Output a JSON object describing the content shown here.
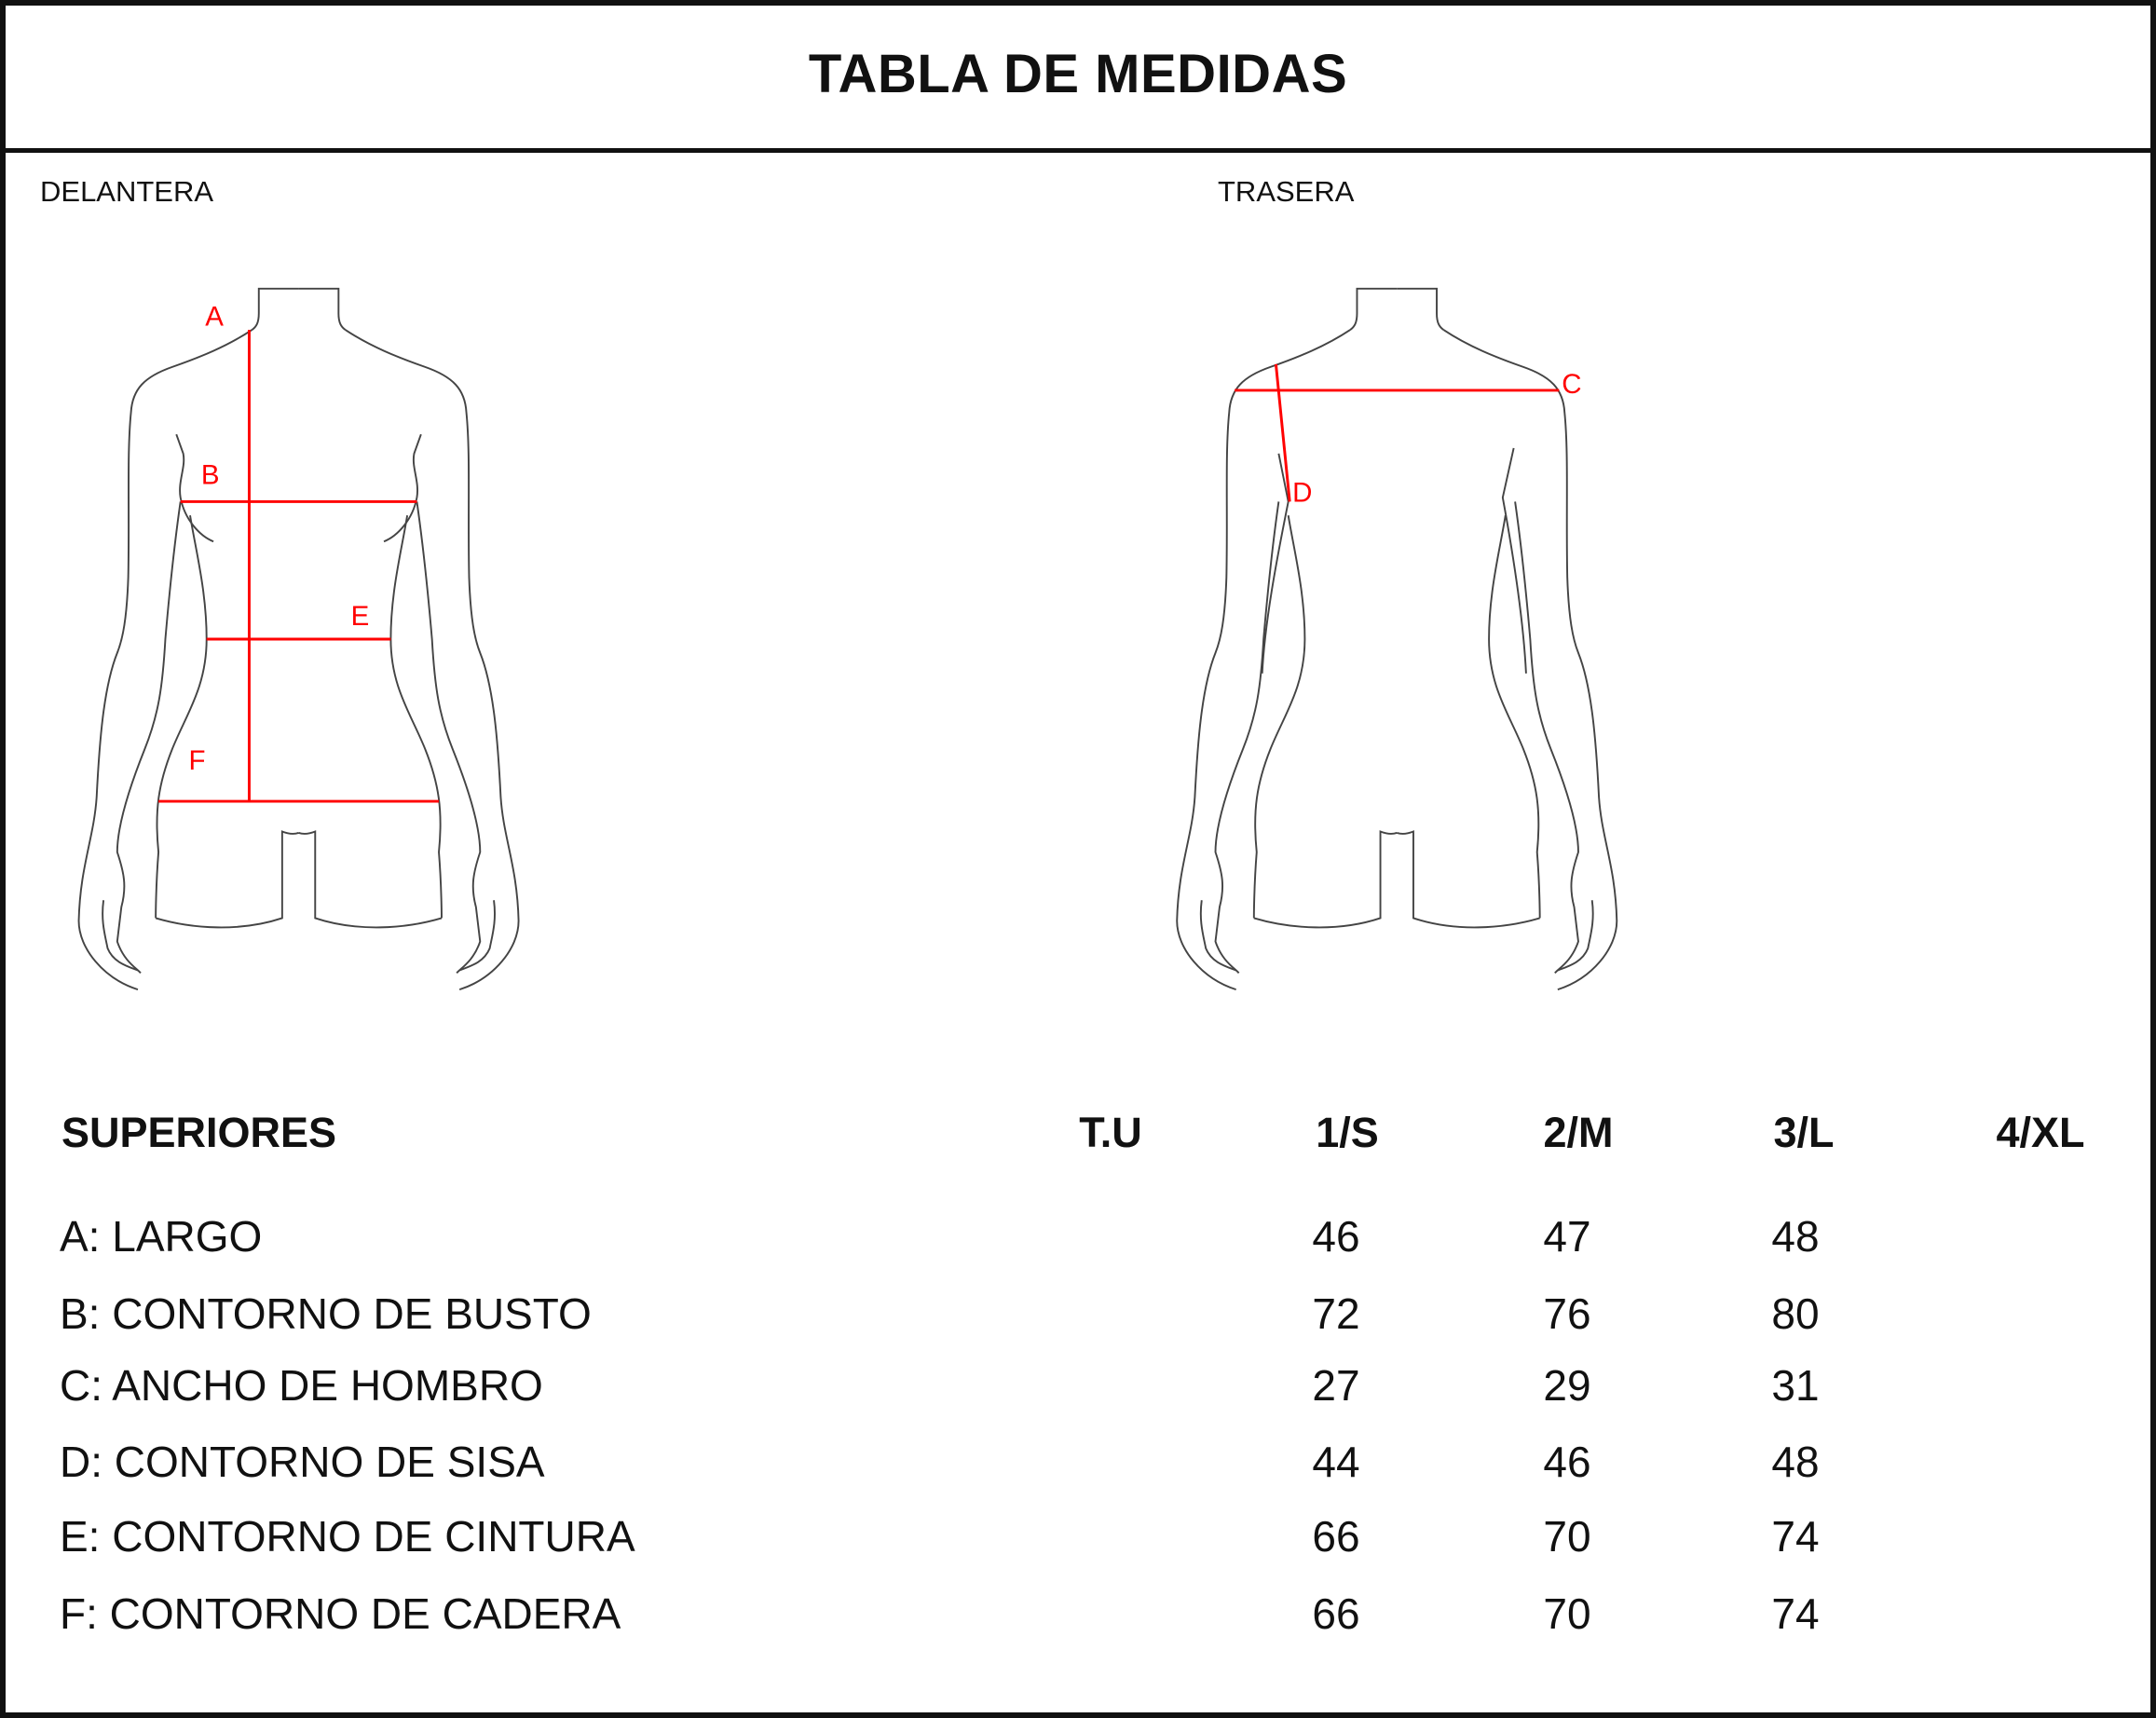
{
  "title": "TABLA DE MEDIDAS",
  "views": {
    "front": "DELANTERA",
    "back": "TRASERA"
  },
  "markers": {
    "A": "A",
    "B": "B",
    "C": "C",
    "D": "D",
    "E": "E",
    "F": "F"
  },
  "colors": {
    "measure_lines": "#ff0000",
    "outline": "#444444",
    "text": "#111111"
  },
  "table": {
    "section": "SUPERIORES",
    "sizes": [
      "T.U",
      "1/S",
      "2/M",
      "3/L",
      "4/XL"
    ],
    "rows": [
      {
        "label": "A: LARGO",
        "values": [
          "",
          "46",
          "47",
          "48",
          ""
        ]
      },
      {
        "label": "B: CONTORNO DE BUSTO",
        "values": [
          "",
          "72",
          "76",
          "80",
          ""
        ]
      },
      {
        "label": "C: ANCHO DE HOMBRO",
        "values": [
          "",
          "27",
          "29",
          "31",
          ""
        ]
      },
      {
        "label": "D: CONTORNO DE SISA",
        "values": [
          "",
          "44",
          "46",
          "48",
          ""
        ]
      },
      {
        "label": "E: CONTORNO DE CINTURA",
        "values": [
          "",
          "66",
          "70",
          "74",
          ""
        ]
      },
      {
        "label": "F: CONTORNO DE CADERA",
        "values": [
          "",
          "66",
          "70",
          "74",
          ""
        ]
      }
    ]
  }
}
